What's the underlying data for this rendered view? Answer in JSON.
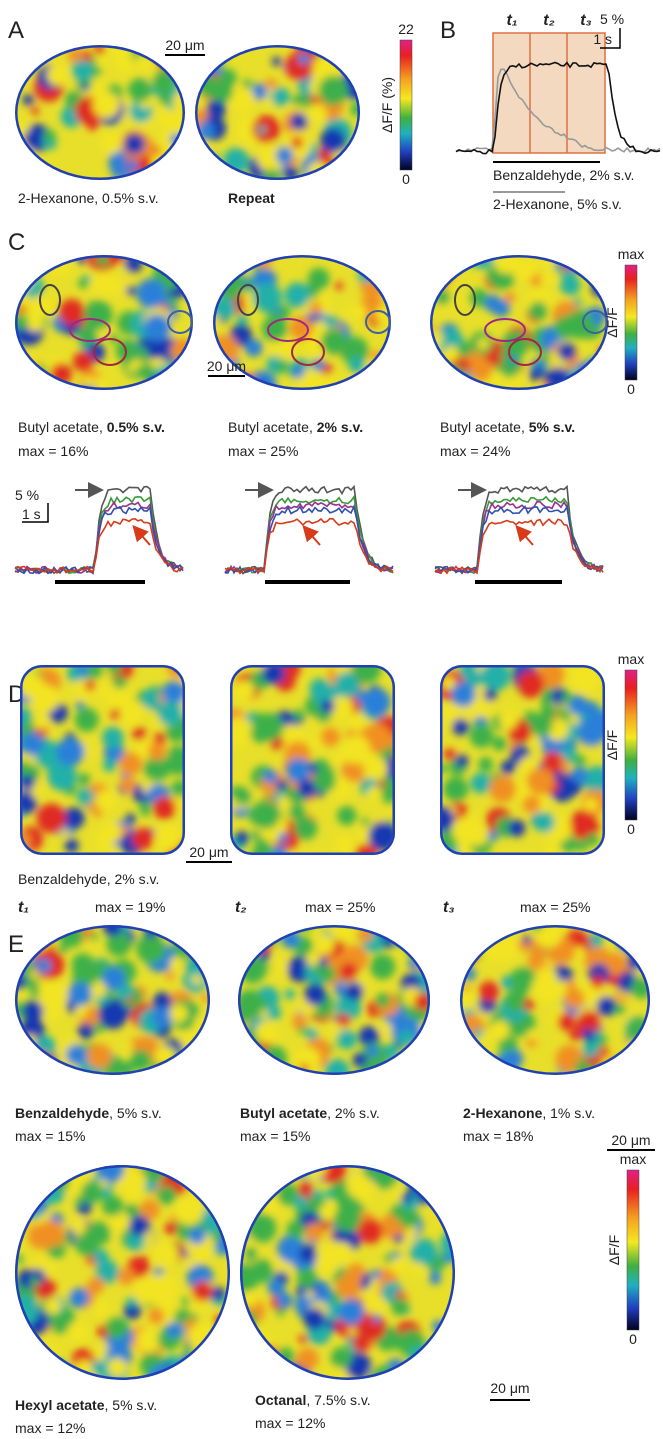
{
  "A": {
    "label": "A",
    "scale": "20 μm",
    "cbar_max": "22",
    "cbar_min": "0",
    "cbar_title": "ΔF/F (%)",
    "captions": [
      {
        "parts": [
          {
            "text": "2-Hexanone, 0.5% s.v.",
            "bold": false
          }
        ]
      },
      {
        "parts": [
          {
            "text": "Repeat",
            "bold": true
          }
        ]
      }
    ]
  },
  "B": {
    "label": "B",
    "times": [
      "t₁",
      "t₂",
      "t₃"
    ],
    "scale_y": "5 %",
    "scale_x": "1 s",
    "legend": [
      "Benzaldehyde, 2% s.v.",
      "2-Hexanone, 5% s.v."
    ]
  },
  "C": {
    "label": "C",
    "scale": "20 μm",
    "cbar_max": "max",
    "cbar_min": "0",
    "cbar_title": "ΔF/F",
    "trace_scale_y": "5 %",
    "trace_scale_x": "1 s",
    "captions": [
      {
        "parts": [
          {
            "text": "Butyl acetate, ",
            "bold": false
          },
          {
            "text": "0.5% s.v.",
            "bold": true
          }
        ],
        "max": "max = 16%"
      },
      {
        "parts": [
          {
            "text": "Butyl acetate, ",
            "bold": false
          },
          {
            "text": "2% s.v.",
            "bold": true
          }
        ],
        "max": "max = 25%"
      },
      {
        "parts": [
          {
            "text": "Butyl acetate, ",
            "bold": false
          },
          {
            "text": "5% s.v.",
            "bold": true
          }
        ],
        "max": "max = 24%"
      }
    ]
  },
  "D": {
    "label": "D",
    "scale": "20 μm",
    "cbar_max": "max",
    "cbar_min": "0",
    "cbar_title": "ΔF/F",
    "caption": "Benzaldehyde, 2% s.v.",
    "frames": [
      {
        "t": "t₁",
        "max": "max = 19%"
      },
      {
        "t": "t₂",
        "max": "max = 25%"
      },
      {
        "t": "t₃",
        "max": "max = 25%"
      }
    ]
  },
  "E": {
    "label": "E",
    "scale": "20 μm",
    "cbar_max": "max",
    "cbar_min": "0",
    "cbar_title": "ΔF/F",
    "captions": [
      {
        "parts": [
          {
            "text": "Benzaldehyde",
            "bold": true
          },
          {
            "text": ", 5% s.v.",
            "bold": false
          }
        ],
        "max": "max = 15%"
      },
      {
        "parts": [
          {
            "text": "Butyl acetate",
            "bold": true
          },
          {
            "text": ", 2% s.v.",
            "bold": false
          }
        ],
        "max": "max = 15%"
      },
      {
        "parts": [
          {
            "text": "2-Hexanone",
            "bold": true
          },
          {
            "text": ", 1% s.v.",
            "bold": false
          }
        ],
        "max": "max = 18%"
      },
      {
        "parts": [
          {
            "text": "Hexyl acetate",
            "bold": true
          },
          {
            "text": ", 5% s.v.",
            "bold": false
          }
        ],
        "max": "max = 12%"
      },
      {
        "parts": [
          {
            "text": "Octanal",
            "bold": true
          },
          {
            "text": ", 7.5% s.v.",
            "bold": false
          }
        ],
        "max": "max = 12%"
      }
    ]
  }
}
